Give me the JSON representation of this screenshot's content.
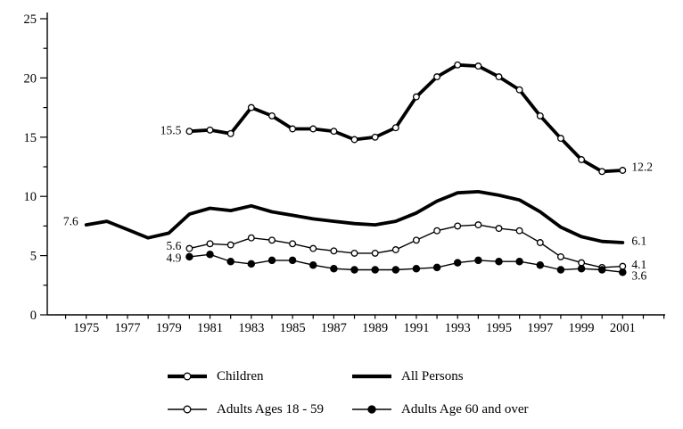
{
  "chart_data": {
    "type": "line",
    "title": "",
    "xlabel": "",
    "ylabel": "",
    "x_axis": {
      "tick_year_first": 1974,
      "tick_year_last": 2003,
      "tick_step": 1,
      "labeled_years": [
        1975,
        1977,
        1979,
        1981,
        1983,
        1985,
        1987,
        1989,
        1991,
        1993,
        1995,
        1997,
        1999,
        2001
      ]
    },
    "y_axis": {
      "min": 0,
      "max": 25,
      "major_ticks": [
        0,
        5,
        10,
        15,
        20,
        25
      ],
      "major_tick_labels": [
        "0",
        "5",
        "10",
        "15",
        "20",
        "25"
      ],
      "minor_tick_step": 2.5
    },
    "grid": "off",
    "legend_position": "bottom",
    "colors": {
      "line": "#000000",
      "background": "#ffffff",
      "open_marker_fill": "#ffffff"
    },
    "series": [
      {
        "name": "Children",
        "start_year": 1980,
        "values": [
          15.5,
          15.6,
          15.3,
          17.5,
          16.8,
          15.7,
          15.7,
          15.5,
          14.8,
          15.0,
          15.8,
          18.4,
          20.1,
          21.1,
          21.0,
          20.1,
          19.0,
          16.8,
          14.9,
          13.1,
          12.1,
          12.2
        ],
        "line": "thick",
        "marker": "open-circle",
        "start_label": "15.5",
        "end_label": "12.2"
      },
      {
        "name": "All Persons",
        "start_year": 1975,
        "values": [
          7.6,
          7.9,
          7.2,
          6.5,
          6.9,
          8.5,
          9.0,
          8.8,
          9.2,
          8.7,
          8.4,
          8.1,
          7.9,
          7.7,
          7.6,
          7.9,
          8.6,
          9.6,
          10.3,
          10.4,
          10.1,
          9.7,
          8.7,
          7.4,
          6.6,
          6.2,
          6.1
        ],
        "line": "thick",
        "marker": "none",
        "start_label": "7.6",
        "end_label": "6.1"
      },
      {
        "name": "Adults Ages 18 - 59",
        "start_year": 1980,
        "values": [
          5.6,
          6.0,
          5.9,
          6.5,
          6.3,
          6.0,
          5.6,
          5.4,
          5.2,
          5.2,
          5.5,
          6.3,
          7.1,
          7.5,
          7.6,
          7.3,
          7.1,
          6.1,
          4.9,
          4.4,
          4.0,
          4.1
        ],
        "line": "thin",
        "marker": "open-circle",
        "start_label": "5.6",
        "end_label": "4.1"
      },
      {
        "name": "Adults Age 60 and over",
        "start_year": 1980,
        "values": [
          4.9,
          5.1,
          4.5,
          4.3,
          4.6,
          4.6,
          4.2,
          3.9,
          3.8,
          3.8,
          3.8,
          3.9,
          4.0,
          4.4,
          4.6,
          4.5,
          4.5,
          4.2,
          3.8,
          3.9,
          3.8,
          3.6
        ],
        "line": "thin",
        "marker": "filled-circle",
        "start_label": "4.9",
        "end_label": "3.6"
      }
    ]
  }
}
